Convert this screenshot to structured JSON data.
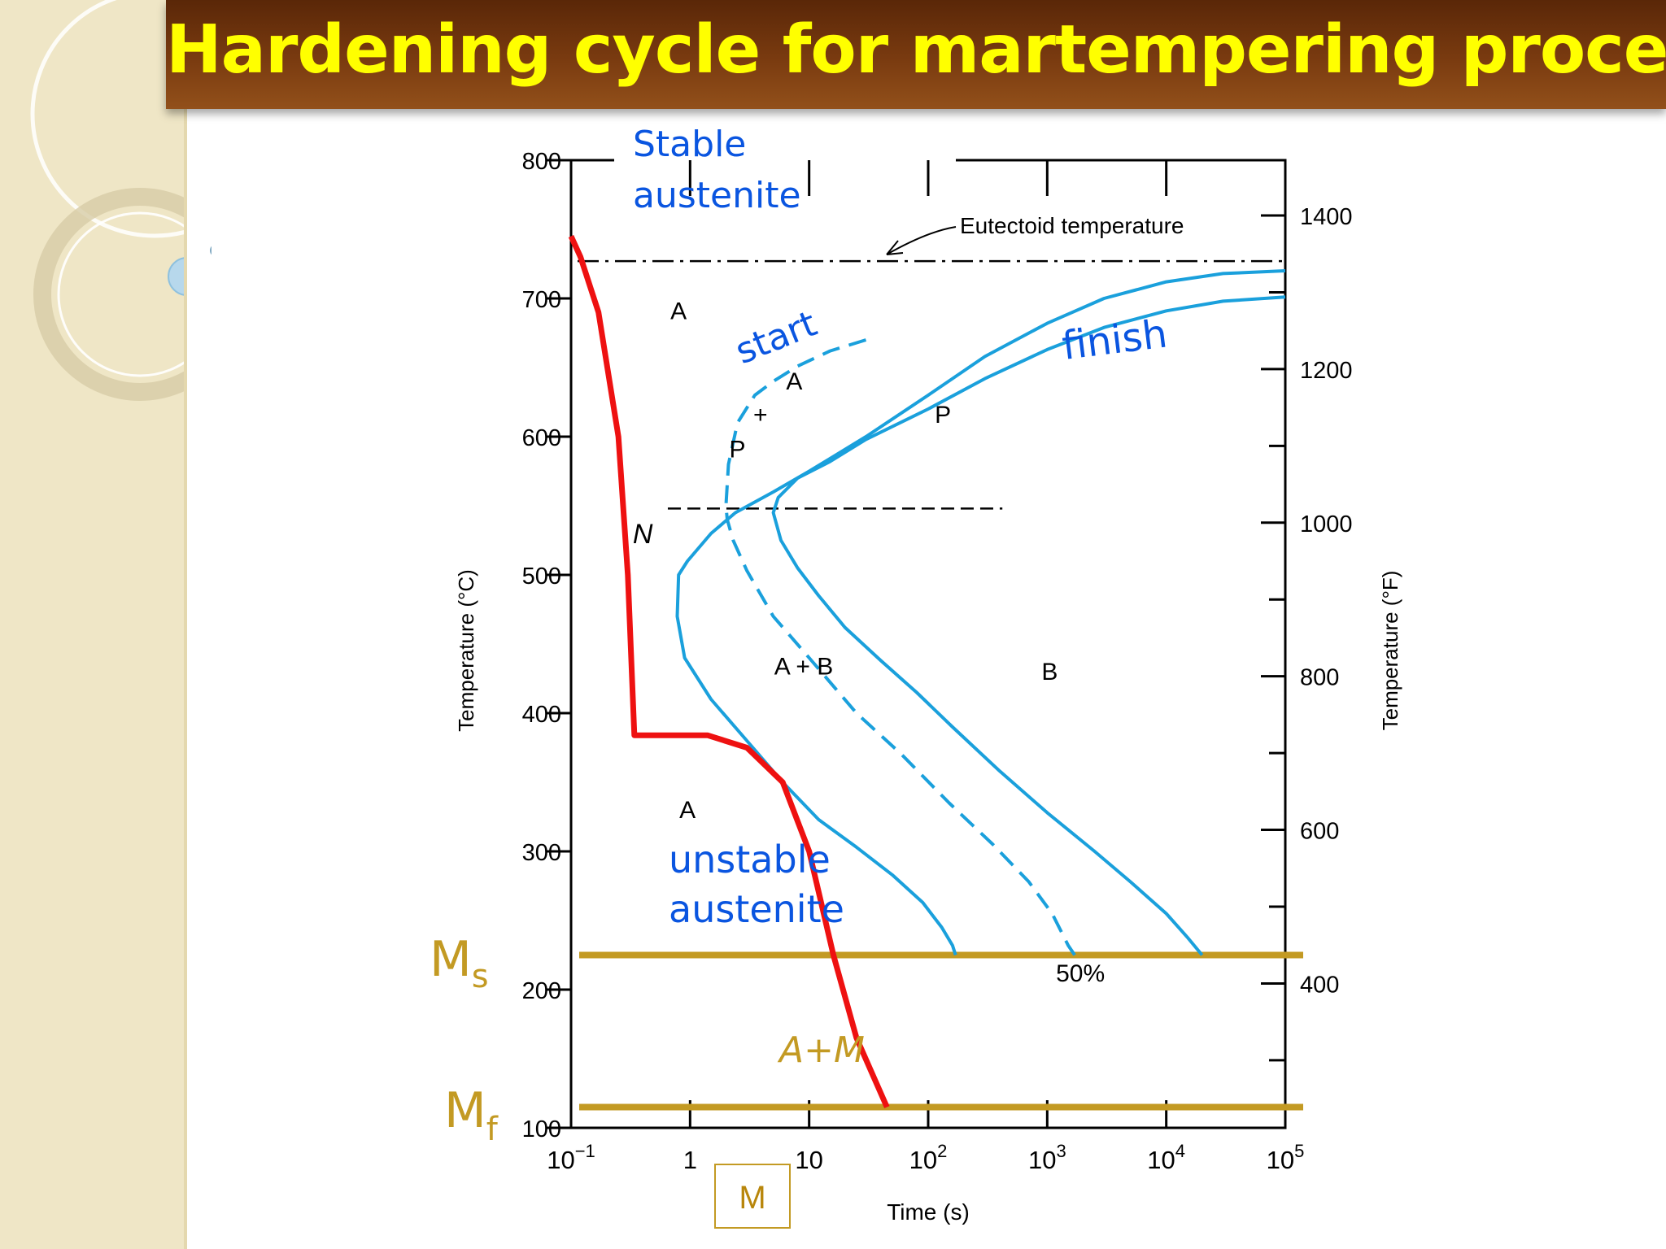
{
  "slide": {
    "title": "Hardening cycle for martempering process"
  },
  "colors": {
    "title_text": "#ffff00",
    "title_bar": "#7a3b10",
    "sidebar": "#efe6c6",
    "transformation_curves": "#1aa0dc",
    "cooling_path": "#ee1111",
    "ms_mf_lines": "#c39a23",
    "annotation_blue": "#0a55e0"
  },
  "chart_data": {
    "type": "diagram",
    "x_scale": "log",
    "xlim": [
      0.1,
      100000
    ],
    "ylim": [
      100,
      800
    ],
    "xlabel": "Time (s)",
    "ylabel_left": "Temperature (°C)",
    "ylabel_right": "Temperature (°F)",
    "y_ticks_left": [
      {
        "value": 100,
        "label": "100"
      },
      {
        "value": 200,
        "label": "200"
      },
      {
        "value": 300,
        "label": "300"
      },
      {
        "value": 400,
        "label": "400"
      },
      {
        "value": 500,
        "label": "500"
      },
      {
        "value": 600,
        "label": "600"
      },
      {
        "value": 700,
        "label": "700"
      },
      {
        "value": 800,
        "label": "800"
      }
    ],
    "y_ticks_right": [
      {
        "value_f": 400,
        "label": "400"
      },
      {
        "value_f": 600,
        "label": "600"
      },
      {
        "value_f": 800,
        "label": "800"
      },
      {
        "value_f": 1000,
        "label": "1000"
      },
      {
        "value_f": 1200,
        "label": "1200"
      },
      {
        "value_f": 1400,
        "label": "1400"
      }
    ],
    "x_ticks": [
      {
        "value": 0.1,
        "base": "10",
        "exp": "−1"
      },
      {
        "value": 1,
        "base": "1",
        "exp": ""
      },
      {
        "value": 10,
        "base": "10",
        "exp": ""
      },
      {
        "value": 100,
        "base": "10",
        "exp": "2"
      },
      {
        "value": 1000,
        "base": "10",
        "exp": "3"
      },
      {
        "value": 10000,
        "base": "10",
        "exp": "4"
      },
      {
        "value": 100000,
        "base": "10",
        "exp": "5"
      }
    ],
    "eutectoid": {
      "temperature": 727,
      "label": "Eutectoid temperature"
    },
    "nose_line_temperature": 548,
    "ms_temperature": 225,
    "mf_temperature": 115,
    "curves": [
      {
        "name": "start",
        "style": "solid",
        "points": [
          [
            100000,
            720
          ],
          [
            30000,
            718
          ],
          [
            10000,
            712
          ],
          [
            3000,
            700
          ],
          [
            1000,
            682
          ],
          [
            300,
            658
          ],
          [
            100,
            630
          ],
          [
            30,
            600
          ],
          [
            10,
            575
          ],
          [
            5,
            560
          ],
          [
            2.4,
            545
          ],
          [
            1.5,
            530
          ],
          [
            0.95,
            510
          ],
          [
            0.8,
            500
          ],
          [
            0.78,
            470
          ],
          [
            0.9,
            440
          ],
          [
            1.5,
            410
          ],
          [
            3,
            380
          ],
          [
            6,
            350
          ],
          [
            12,
            323
          ],
          [
            25,
            303
          ],
          [
            50,
            283
          ],
          [
            90,
            263
          ],
          [
            130,
            245
          ],
          [
            160,
            232
          ],
          [
            170,
            225
          ]
        ]
      },
      {
        "name": "50%",
        "style": "dashed",
        "points": [
          [
            30,
            670
          ],
          [
            15,
            662
          ],
          [
            8,
            651
          ],
          [
            5,
            640
          ],
          [
            3.5,
            630
          ],
          [
            2.5,
            610
          ],
          [
            2.1,
            580
          ],
          [
            2,
            550
          ],
          [
            2.05,
            540
          ],
          [
            2.3,
            525
          ],
          [
            3,
            503
          ],
          [
            5,
            470
          ],
          [
            10,
            440
          ],
          [
            25,
            400
          ],
          [
            60,
            370
          ],
          [
            150,
            335
          ],
          [
            350,
            305
          ],
          [
            700,
            278
          ],
          [
            1100,
            255
          ],
          [
            1500,
            232
          ],
          [
            1700,
            225
          ]
        ]
      },
      {
        "name": "finish",
        "style": "solid",
        "points": [
          [
            100000,
            701
          ],
          [
            30000,
            698
          ],
          [
            10000,
            691
          ],
          [
            3000,
            679
          ],
          [
            1000,
            663
          ],
          [
            300,
            642
          ],
          [
            100,
            620
          ],
          [
            30,
            598
          ],
          [
            15,
            582
          ],
          [
            8,
            570
          ],
          [
            5.5,
            556
          ],
          [
            5,
            545
          ],
          [
            5.8,
            525
          ],
          [
            8,
            505
          ],
          [
            12,
            485
          ],
          [
            20,
            462
          ],
          [
            40,
            438
          ],
          [
            80,
            415
          ],
          [
            160,
            390
          ],
          [
            400,
            358
          ],
          [
            1000,
            328
          ],
          [
            2500,
            300
          ],
          [
            5000,
            278
          ],
          [
            10000,
            255
          ],
          [
            15000,
            238
          ],
          [
            20000,
            225
          ]
        ]
      }
    ],
    "cooling_path": {
      "name": "martempering cooling path",
      "points": [
        [
          0.1,
          745
        ],
        [
          0.12,
          730
        ],
        [
          0.17,
          690
        ],
        [
          0.25,
          600
        ],
        [
          0.3,
          500
        ],
        [
          0.34,
          384
        ],
        [
          1.4,
          384
        ],
        [
          3,
          375
        ],
        [
          6,
          350
        ],
        [
          10,
          300
        ],
        [
          16,
          225
        ],
        [
          25,
          165
        ],
        [
          45,
          115
        ]
      ]
    },
    "region_labels": [
      {
        "text": "A",
        "x": 0.8,
        "y": 685
      },
      {
        "text": "+",
        "x": 3.9,
        "y": 610
      },
      {
        "text": "A",
        "x": 7.5,
        "y": 634
      },
      {
        "text": "P",
        "x": 2.5,
        "y": 585
      },
      {
        "text": "P",
        "x": 133,
        "y": 610
      },
      {
        "text": "A + B",
        "x": 9,
        "y": 428
      },
      {
        "text": "B",
        "x": 1050,
        "y": 424
      },
      {
        "text": "A",
        "x": 0.95,
        "y": 324
      },
      {
        "text": "50%",
        "x": 1900,
        "y": 206
      },
      {
        "text": "N",
        "x": 0.4,
        "y": 523
      }
    ],
    "annotations": [
      {
        "key": "stable_austenite",
        "lines": [
          "Stable",
          "austenite"
        ]
      },
      {
        "key": "start",
        "text": "start"
      },
      {
        "key": "finish",
        "text": "finish"
      },
      {
        "key": "unstable_austenite",
        "lines": [
          "unstable",
          "austenite"
        ]
      },
      {
        "key": "a_plus_m",
        "text": "A+M"
      },
      {
        "key": "ms",
        "base": "M",
        "sub": "s"
      },
      {
        "key": "mf",
        "base": "M",
        "sub": "f"
      },
      {
        "key": "m_box",
        "text": "M"
      }
    ]
  }
}
